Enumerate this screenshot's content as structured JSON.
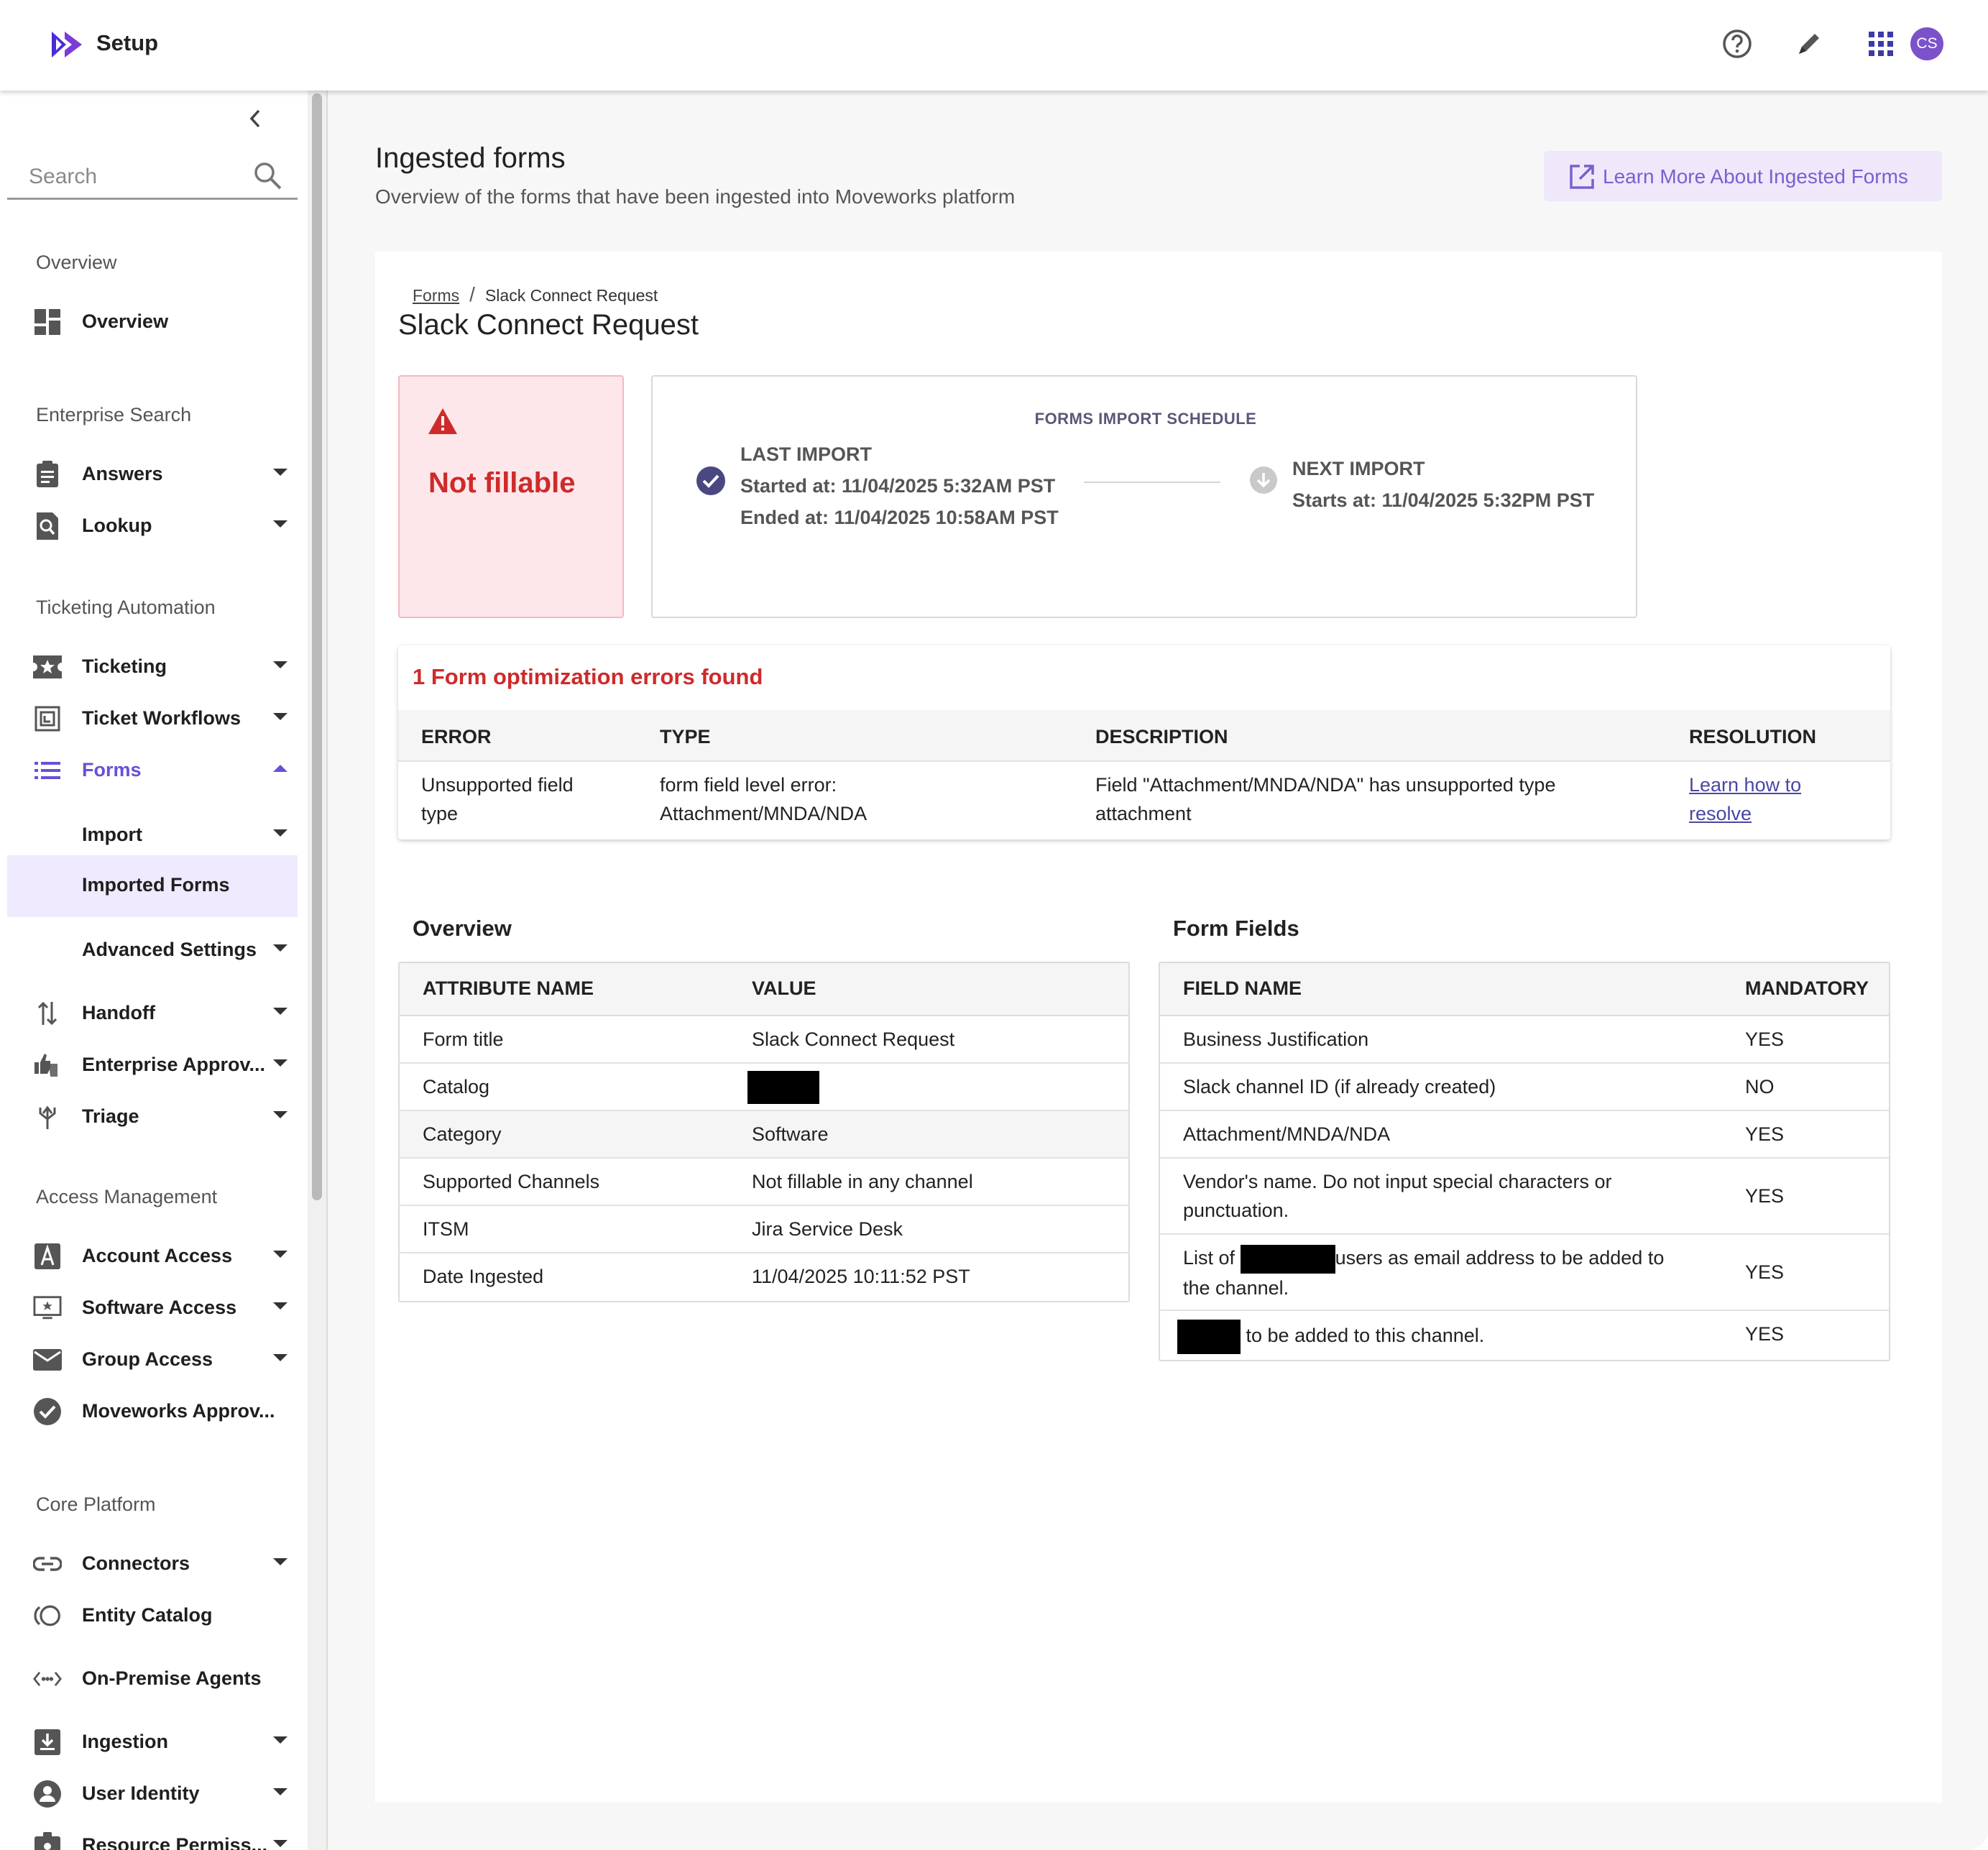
{
  "topbar": {
    "app_title": "Setup",
    "avatar_initials": "CS",
    "icons": [
      "help-icon",
      "pen-icon",
      "apps-grid-icon"
    ]
  },
  "sidebar": {
    "search_placeholder": "Search",
    "sections": {
      "overview": "Overview",
      "enterprise_search": "Enterprise Search",
      "ticketing_automation": "Ticketing Automation",
      "access_management": "Access Management",
      "core_platform": "Core Platform"
    },
    "items": {
      "overview": "Overview",
      "answers": "Answers",
      "lookup": "Lookup",
      "ticketing": "Ticketing",
      "ticket_workflows": "Ticket Workflows",
      "forms": "Forms",
      "import": "Import",
      "imported_forms": "Imported Forms",
      "advanced_settings": "Advanced Settings",
      "handoff": "Handoff",
      "enterprise_approvals": "Enterprise Approv...",
      "triage": "Triage",
      "account_access": "Account Access",
      "software_access": "Software Access",
      "group_access": "Group Access",
      "moveworks_approvals": "Moveworks Approv...",
      "connectors": "Connectors",
      "entity_catalog": "Entity Catalog",
      "on_premise_agents": "On-Premise Agents",
      "ingestion": "Ingestion",
      "user_identity": "User Identity",
      "resource_permissions": "Resource Permiss..."
    }
  },
  "header": {
    "title": "Ingested forms",
    "subtitle": "Overview of the forms that have been ingested into Moveworks platform",
    "learn_more": "Learn More About Ingested Forms"
  },
  "breadcrumb": {
    "parent": "Forms",
    "separator": "/",
    "current": "Slack Connect Request"
  },
  "form": {
    "title": "Slack Connect Request",
    "status": "Not fillable"
  },
  "schedule": {
    "title": "FORMS IMPORT SCHEDULE",
    "last_label": "LAST IMPORT",
    "last_started": "Started at: 11/04/2025 5:32AM PST",
    "last_ended": "Ended at: 11/04/2025 10:58AM PST",
    "next_label": "NEXT IMPORT",
    "next_starts": "Starts at: 11/04/2025 5:32PM PST"
  },
  "errors": {
    "title": "1 Form optimization errors found",
    "headers": {
      "error": "ERROR",
      "type": "TYPE",
      "description": "DESCRIPTION",
      "resolution": "RESOLUTION"
    },
    "rows": [
      {
        "error_l1": "Unsupported field",
        "error_l2": "type",
        "type_l1": "form field level error:",
        "type_l2": "Attachment/MNDA/NDA",
        "desc_l1": "Field \"Attachment/MNDA/NDA\" has unsupported type",
        "desc_l2": "attachment",
        "res_l1": "Learn how to",
        "res_l2": "resolve"
      }
    ]
  },
  "overview": {
    "title": "Overview",
    "headers": {
      "attr": "ATTRIBUTE NAME",
      "value": "VALUE"
    },
    "rows": [
      {
        "attr": "Form title",
        "value": "Slack Connect Request"
      },
      {
        "attr": "Catalog",
        "value": ""
      },
      {
        "attr": "Category",
        "value": "Software"
      },
      {
        "attr": "Supported Channels",
        "value": "Not fillable in any channel"
      },
      {
        "attr": "ITSM",
        "value": "Jira Service Desk"
      },
      {
        "attr": "Date Ingested",
        "value": "11/04/2025 10:11:52 PST"
      }
    ]
  },
  "form_fields": {
    "title": "Form Fields",
    "headers": {
      "name": "FIELD NAME",
      "mandatory": "MANDATORY"
    },
    "rows": [
      {
        "name": "Business Justification",
        "mandatory": "YES"
      },
      {
        "name": "Slack channel ID (if already created)",
        "mandatory": "NO"
      },
      {
        "name": "Attachment/MNDA/NDA",
        "mandatory": "YES"
      },
      {
        "name_l1": "Vendor's name. Do not input special characters or",
        "name_l2": "punctuation.",
        "mandatory": "YES"
      },
      {
        "name_pre": "List of",
        "name_post": "users as email address to be added to",
        "name_l2": "the channel.",
        "mandatory": "YES"
      },
      {
        "name_post": "to be added to this channel.",
        "mandatory": "YES"
      }
    ]
  },
  "colors": {
    "accent": "#6a4fd8",
    "error": "#cf2a2a",
    "status_bg": "#fde7ea",
    "learn_btn_bg": "#efe8fb"
  }
}
